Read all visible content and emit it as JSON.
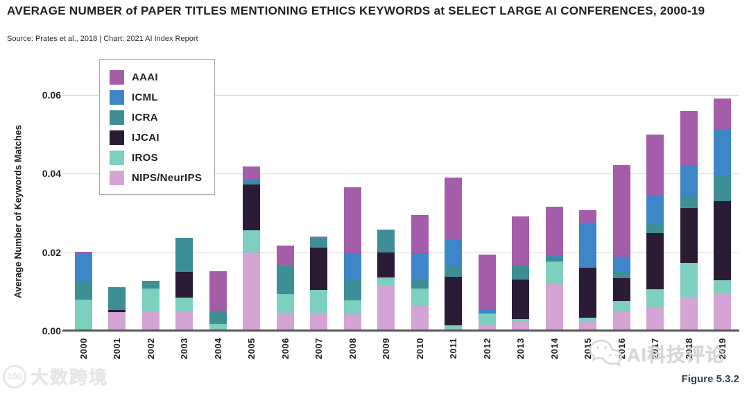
{
  "header": {
    "title": "AVERAGE NUMBER of PAPER TITLES MENTIONING ETHICS KEYWORDS at SELECT LARGE AI CONFERENCES, 2000-19",
    "source": "Source: Prates et al., 2018 | Chart: 2021 AI Index Report"
  },
  "chart_data": {
    "type": "bar",
    "stacked": true,
    "title": "AVERAGE NUMBER of PAPER TITLES MENTIONING ETHICS KEYWORDS at SELECT LARGE AI CONFERENCES, 2000-19",
    "xlabel": "",
    "ylabel": "Average Number of Keywords Matches",
    "ylim": [
      0,
      0.06
    ],
    "ytick_values": [
      0,
      0.02,
      0.04,
      0.06
    ],
    "ytick_labels": [
      "0.00",
      "0.02",
      "0.04",
      "0.06"
    ],
    "grid": true,
    "legend_position": "upper-left-inside",
    "categories": [
      "2000",
      "2001",
      "2002",
      "2003",
      "2004",
      "2005",
      "2006",
      "2007",
      "2008",
      "2009",
      "2010",
      "2011",
      "2012",
      "2013",
      "2014",
      "2015",
      "2016",
      "2017",
      "2018",
      "2019"
    ],
    "stack_order_bottom_to_top": [
      "NIPS/NeurIPS",
      "IROS",
      "IJCAI",
      "ICRA",
      "ICML",
      "AAAI"
    ],
    "series": [
      {
        "name": "AAAI",
        "color": "#A35DA9",
        "values": [
          0.0005,
          0,
          0,
          0,
          0.0101,
          0.0034,
          0.0052,
          0.0003,
          0.0168,
          0,
          0.0097,
          0.0159,
          0.0141,
          0.0124,
          0.0124,
          0.0031,
          0.0233,
          0.0155,
          0.0137,
          0.008
        ]
      },
      {
        "name": "ICML",
        "color": "#3D86C8",
        "values": [
          0.0068,
          0,
          0,
          0,
          0,
          0.0004,
          0,
          0,
          0.0066,
          0,
          0.0066,
          0.0067,
          0.0009,
          0,
          0.0004,
          0.0115,
          0.0037,
          0.0069,
          0.0079,
          0.0117
        ]
      },
      {
        "name": "ICRA",
        "color": "#3E8E96",
        "values": [
          0.0047,
          0.0059,
          0.0019,
          0.0086,
          0.0034,
          0.0009,
          0.0072,
          0.0024,
          0.0054,
          0.0058,
          0.0024,
          0.0027,
          0,
          0.0037,
          0.0012,
          0,
          0.0017,
          0.0026,
          0.003,
          0.0065
        ]
      },
      {
        "name": "IJCAI",
        "color": "#2B1B34",
        "values": [
          0,
          0.0005,
          0,
          0.0065,
          0,
          0.0116,
          0,
          0.0107,
          0,
          0.0063,
          0,
          0.0124,
          0,
          0.01,
          0,
          0.0127,
          0.0058,
          0.0143,
          0.014,
          0.0202
        ]
      },
      {
        "name": "IROS",
        "color": "#7DCFBE",
        "values": [
          0.0075,
          0,
          0.006,
          0.0034,
          0.0017,
          0.0057,
          0.0047,
          0.0058,
          0.0035,
          0.0019,
          0.0044,
          0.0013,
          0.0029,
          0.0005,
          0.0055,
          0.0009,
          0.0024,
          0.0047,
          0.0086,
          0.0034
        ]
      },
      {
        "name": "NIPS/NeurIPS",
        "color": "#D4A4D4",
        "values": [
          0.0003,
          0.0047,
          0.0047,
          0.0051,
          0,
          0.02,
          0.0045,
          0.0045,
          0.0043,
          0.0116,
          0.0064,
          0.0002,
          0.0016,
          0.0024,
          0.0122,
          0.0024,
          0.0051,
          0.0058,
          0.0087,
          0.0095
        ]
      }
    ]
  },
  "footer": {
    "figure_label": "Figure 5.3.2"
  },
  "watermarks": {
    "left_logo_text": "100",
    "left_text": "大数跨境",
    "right_text": "AI科技评论"
  },
  "colors": {
    "axis_line": "#57585A",
    "gridline": "#D9D9D9",
    "figure_label": "#2F4257",
    "title_text": "#1F1F21"
  }
}
